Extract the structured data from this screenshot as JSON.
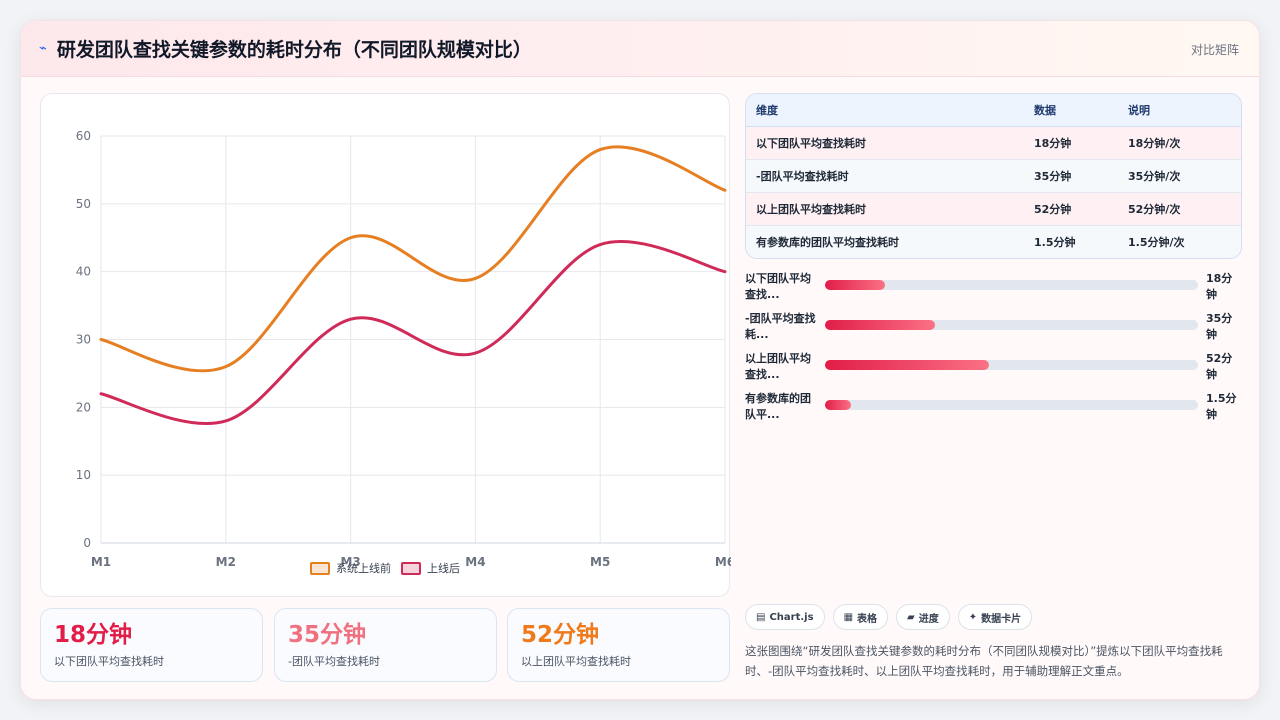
{
  "header": {
    "title": "研发团队查找关键参数的耗时分布（不同团队规模对比）",
    "right_label": "对比矩阵"
  },
  "chart_data": {
    "type": "line",
    "categories": [
      "M1",
      "M2",
      "M3",
      "M4",
      "M5",
      "M6"
    ],
    "series": [
      {
        "name": "系统上线前",
        "color": "#e67e22",
        "values": [
          30,
          26,
          45,
          39,
          58,
          52
        ]
      },
      {
        "name": "上线后",
        "color": "#d02a58",
        "values": [
          22,
          18,
          33,
          28,
          44,
          40
        ]
      }
    ],
    "ylim": [
      0,
      60
    ],
    "yticks": [
      0,
      10,
      20,
      30,
      40,
      50,
      60
    ],
    "grid": true,
    "legend": "bottom"
  },
  "kpis": [
    {
      "value": "18分钟",
      "label": "以下团队平均查找耗时",
      "color": "#e11d48"
    },
    {
      "value": "35分钟",
      "label": "-团队平均查找耗时",
      "color": "#f07080"
    },
    {
      "value": "52分钟",
      "label": "以上团队平均查找耗时",
      "color": "#f07a1a"
    }
  ],
  "table": {
    "headers": [
      "维度",
      "数据",
      "说明"
    ],
    "rows": [
      [
        "以下团队平均查找耗时",
        "18分钟",
        "18分钟/次"
      ],
      [
        "-团队平均查找耗时",
        "35分钟",
        "35分钟/次"
      ],
      [
        "以上团队平均查找耗时",
        "52分钟",
        "52分钟/次"
      ],
      [
        "有参数库的团队平均查找耗时",
        "1.5分钟",
        "1.5分钟/次"
      ]
    ]
  },
  "bars": [
    {
      "label": "以下团队平均查找...",
      "value": "18分钟",
      "pct": 0.16
    },
    {
      "label": "-团队平均查找耗...",
      "value": "35分钟",
      "pct": 0.295
    },
    {
      "label": "以上团队平均查找...",
      "value": "52分钟",
      "pct": 0.44
    },
    {
      "label": "有参数库的团队平...",
      "value": "1.5分钟",
      "pct": 0.07
    }
  ],
  "tags": [
    {
      "icon": "▤",
      "label": "Chart.js"
    },
    {
      "icon": "▦",
      "label": "表格"
    },
    {
      "icon": "▰",
      "label": "进度"
    },
    {
      "icon": "✦",
      "label": "数据卡片"
    }
  ],
  "description": "这张图围绕“研发团队查找关键参数的耗时分布（不同团队规模对比）”提炼以下团队平均查找耗时、-团队平均查找耗时、以上团队平均查找耗时，用于辅助理解正文重点。"
}
